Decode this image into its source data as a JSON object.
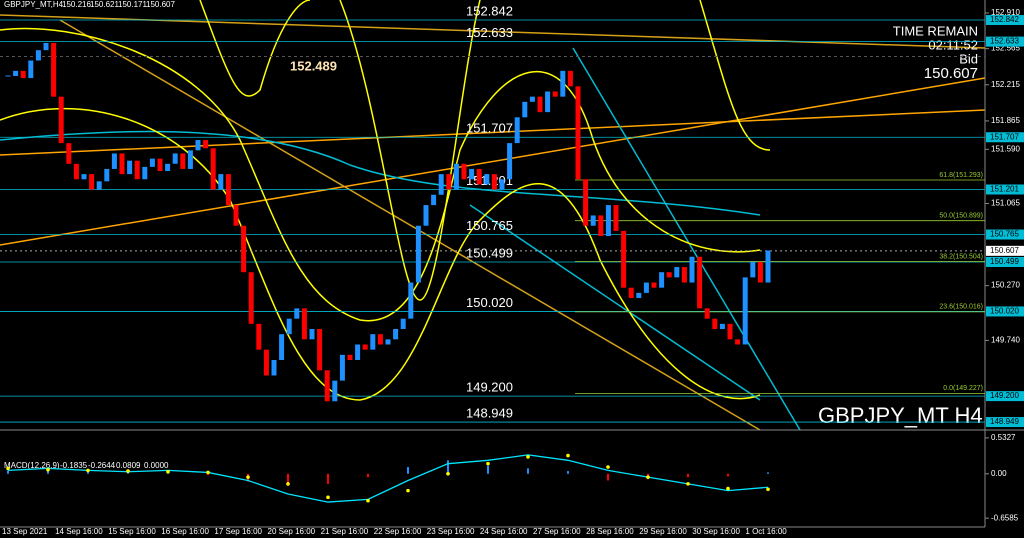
{
  "chart_data": {
    "type": "candlestick",
    "title": "GBPJPY_MT,H4",
    "ohlc": [
      150.216,
      150.621,
      150.171,
      150.607
    ],
    "watermark": "GBPJPY_MT H4",
    "info": {
      "time_remain_label": "TIME REMAIN",
      "time_remain": "02:11:52",
      "bid_label": "Bid",
      "bid": 150.607
    },
    "x_labels": [
      "13 Sep 2021",
      "14 Sep 16:00",
      "15 Sep 16:00",
      "16 Sep 16:00",
      "17 Sep 16:00",
      "20 Sep 16:00",
      "21 Sep 16:00",
      "22 Sep 16:00",
      "23 Sep 16:00",
      "24 Sep 16:00",
      "27 Sep 16:00",
      "28 Sep 16:00",
      "29 Sep 16:00",
      "30 Sep 16:00",
      "1 Oct 16:00"
    ],
    "closes": [
      152.3,
      152.35,
      152.28,
      152.45,
      152.55,
      152.62,
      152.1,
      151.65,
      151.45,
      151.3,
      151.35,
      151.2,
      151.28,
      151.4,
      151.55,
      151.35,
      151.48,
      151.3,
      151.42,
      151.5,
      151.38,
      151.45,
      151.55,
      151.4,
      151.58,
      151.68,
      151.6,
      151.2,
      151.35,
      151.05,
      150.85,
      150.4,
      149.9,
      149.65,
      149.4,
      149.55,
      149.8,
      149.95,
      150.05,
      149.75,
      149.85,
      149.45,
      149.15,
      149.35,
      149.6,
      149.55,
      149.7,
      149.65,
      149.8,
      149.7,
      149.75,
      149.85,
      149.95,
      150.3,
      150.85,
      151.05,
      151.15,
      151.35,
      151.2,
      151.45,
      151.3,
      151.4,
      151.25,
      151.35,
      151.2,
      151.3,
      151.65,
      151.9,
      152.05,
      152.1,
      151.95,
      152.15,
      152.1,
      152.35,
      152.2,
      151.3,
      150.85,
      150.95,
      150.75,
      151.05,
      150.8,
      150.25,
      150.15,
      150.2,
      150.3,
      150.25,
      150.4,
      150.35,
      150.45,
      150.3,
      150.55,
      150.05,
      149.95,
      149.85,
      149.9,
      149.75,
      149.7,
      150.35,
      150.5,
      150.3,
      150.61
    ],
    "up_color": "#1e90ff",
    "down_color": "#ff0000",
    "ylim": [
      148.872,
      153.036
    ],
    "yticks": [
      {
        "value": 152.91,
        "label": "152.910"
      },
      152.565,
      152.215,
      151.865,
      {
        "value": 151.59,
        "label": "151.590"
      },
      151.065,
      {
        "value": 150.27,
        "label": "150.270"
      },
      {
        "value": 149.74,
        "label": "149.740"
      }
    ],
    "levels": [
      152.842,
      152.633,
      151.707,
      151.201,
      150.765,
      150.499,
      {
        "value": 150.02,
        "label": "150.020"
      },
      {
        "value": 149.2,
        "label": "149.200"
      },
      148.949
    ],
    "bold_level": 152.489,
    "fib_levels": [
      {
        "value": 151.293,
        "label": "61.8(151.293)"
      },
      {
        "value": 150.899,
        "label": "50.0(150.899)"
      },
      {
        "value": 150.504,
        "label": "38.2(150.504)"
      },
      {
        "value": 150.016,
        "label": "23.6(150.016)"
      },
      {
        "value": 149.227,
        "label": "0.0(149.227)"
      }
    ],
    "macd": {
      "label": "MACD(12,26,9)",
      "readings": [
        -0.1835,
        -0.2644,
        0.0809,
        {
          "value": 0,
          "label": "0.0000"
        }
      ],
      "ylim": [
        -0.775,
        0.62
      ],
      "yticks": [
        0.5327,
        {
          "value": 0,
          "label": "0.00"
        },
        -0.6585
      ],
      "main": [
        0.05,
        0.08,
        0.05,
        0.03,
        0.05,
        0.02,
        -0.1,
        -0.3,
        -0.42,
        -0.38,
        -0.1,
        0.15,
        0.2,
        0.28,
        0.2,
        0.05,
        -0.05,
        -0.15,
        -0.25,
        -0.2
      ],
      "signal": [
        0.08,
        0.06,
        0.05,
        0.04,
        0.03,
        0.02,
        -0.05,
        -0.15,
        -0.35,
        -0.4,
        -0.25,
        0.0,
        0.15,
        0.25,
        0.27,
        0.1,
        -0.05,
        -0.15,
        -0.22,
        -0.23
      ],
      "histogram": [
        0.05,
        0.06,
        0.03,
        0.02,
        0.04,
        -0.02,
        -0.12,
        -0.18,
        -0.15,
        -0.05,
        0.1,
        0.2,
        0.12,
        0.08,
        0.04,
        -0.1,
        -0.08,
        -0.05,
        -0.04,
        0.02
      ]
    }
  }
}
